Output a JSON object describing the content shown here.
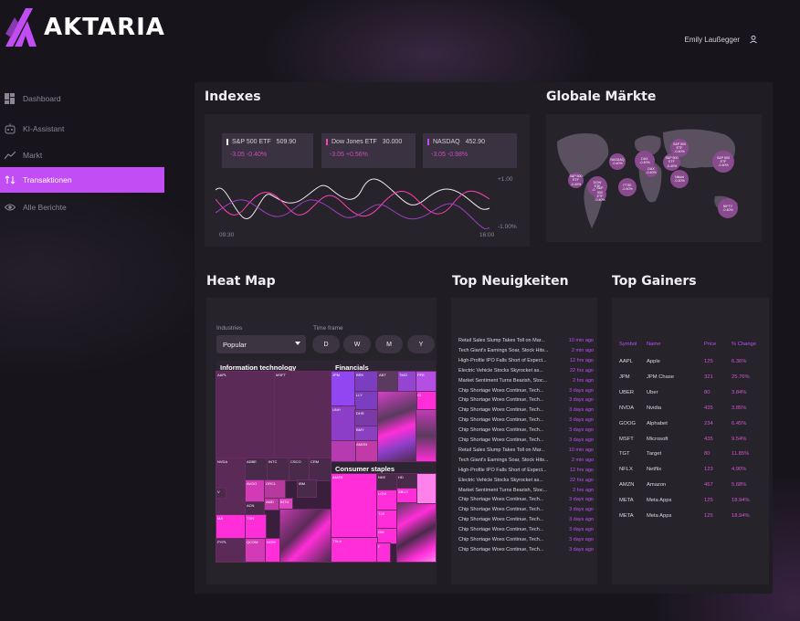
{
  "app": {
    "name": "AKTARIA"
  },
  "user": {
    "name": "Emily  Laußegger",
    "icon": "user-icon"
  },
  "sidebar": {
    "items": [
      {
        "label": "Dashboard",
        "icon": "dashboard-icon"
      },
      {
        "label": "KI-Assistant",
        "icon": "robot-icon"
      },
      {
        "label": "Markt",
        "icon": "trend-icon"
      },
      {
        "label": "Transaktionen",
        "icon": "transfer-icon",
        "active": true
      },
      {
        "label": "Alle Berichte",
        "icon": "eye-icon"
      }
    ]
  },
  "indexes": {
    "title": "Indexes",
    "cards": [
      {
        "name": "S&P 500 ETF",
        "value": "509.90",
        "change": "-3.05  -0.40%"
      },
      {
        "name": "Dow Jones ETF",
        "value": "30.000",
        "change": "-3.05  +0.56%"
      },
      {
        "name": "NASDAQ",
        "value": "452.90",
        "change": "-3.05  -0.98%"
      }
    ],
    "chart": {
      "x_start": "09:30",
      "x_end": "16:00",
      "y_top": "+1.00",
      "y_bottom": "-1.00%"
    }
  },
  "global_markets": {
    "title": "Globale Märkte",
    "bubbles": [
      {
        "label": "S&P 500\nETF\n-0.40%"
      },
      {
        "label": "DOW\nETF\n-0.40%"
      },
      {
        "label": "NASDAQ\n-0.40%"
      },
      {
        "label": "FTSE\n-0.40%"
      },
      {
        "label": "DAX\n-0.40%"
      },
      {
        "label": "S&P 500\nETF\n-0.40%"
      },
      {
        "label": "S&P 500\nETF\n-0.40%"
      },
      {
        "label": "Nikkei\n-0.40%"
      },
      {
        "label": "S&P 500\nETF\n-0.40%"
      },
      {
        "label": "NIFTY\n-0.40%"
      },
      {
        "label": "S&P 500\nETF\n-0.40%"
      },
      {
        "label": "DAX\n-0.40%"
      }
    ]
  },
  "heatmap": {
    "title": "Heat Map",
    "industries_label": "Industries",
    "industries_value": "Popular",
    "timeframe_label": "Time frame",
    "timeframes": [
      "D",
      "W",
      "M",
      "Y"
    ],
    "groups": [
      "Information technology",
      "Financials",
      "Consumer staples"
    ],
    "tickers_it": [
      "AAPL",
      "MSFT",
      "NVDA",
      "ADBE",
      "INTC",
      "CSCO",
      "CRM",
      "AVGO",
      "ORCL",
      "IBM",
      "ACN",
      "AMD",
      "INTU",
      "MA",
      "TXN",
      "PYPL",
      "QCOM",
      "NOW",
      "V"
    ],
    "tickers_fin": [
      "JPM",
      "BRK",
      "ABT",
      "TMO",
      "PFE",
      "LLY",
      "CI",
      "UNH",
      "DHR",
      "MRK",
      "BMY",
      "AMGN"
    ],
    "tickers_cs": [
      "AMZN",
      "NKE",
      "HD",
      "LOW",
      "SBUX",
      "TJX",
      "GM",
      "TSLA",
      "F"
    ]
  },
  "news": {
    "title": "Top Neuigkeiten",
    "items": [
      {
        "title": "Retail Sales Slump Takes Toll on Mar...",
        "age": "10 min ago"
      },
      {
        "title": "Tech Giant's Earnings Soar, Stock Hits...",
        "age": "2 min ago"
      },
      {
        "title": "High-Profile IPO Falls Short of Expect...",
        "age": "12 hrs ago"
      },
      {
        "title": "Electric Vehicle Stocks Skyrocket as...",
        "age": "22 hrs ago"
      },
      {
        "title": "Market Sentiment Turns Bearish, Stoc...",
        "age": "2 hrs ago"
      },
      {
        "title": "Chip Shortage Woes Continue, Tech...",
        "age": "3 days ago"
      },
      {
        "title": "Chip Shortage Woes Continue, Tech...",
        "age": "3 days ago"
      },
      {
        "title": "Chip Shortage Woes Continue, Tech...",
        "age": "3 days ago"
      },
      {
        "title": "Chip Shortage Woes Continue, Tech...",
        "age": "3 days ago"
      },
      {
        "title": "Chip Shortage Woes Continue, Tech...",
        "age": "3 days ago"
      },
      {
        "title": "Chip Shortage Woes Continue, Tech...",
        "age": "3 days ago"
      },
      {
        "title": "Retail Sales Slump Takes Toll on Mar...",
        "age": "10 min ago"
      },
      {
        "title": "Tech Giant's Earnings Soar, Stock Hits...",
        "age": "2 min ago"
      },
      {
        "title": "High-Profile IPO Falls Short of Expect...",
        "age": "12 hrs ago"
      },
      {
        "title": "Electric Vehicle Stocks Skyrocket as...",
        "age": "22 hrs ago"
      },
      {
        "title": "Market Sentiment Turns Bearish, Stoc...",
        "age": "2 hrs ago"
      },
      {
        "title": "Chip Shortage Woes Continue, Tech...",
        "age": "3 days ago"
      },
      {
        "title": "Chip Shortage Woes Continue, Tech...",
        "age": "3 days ago"
      },
      {
        "title": "Chip Shortage Woes Continue, Tech...",
        "age": "3 days ago"
      },
      {
        "title": "Chip Shortage Woes Continue, Tech...",
        "age": "3 days ago"
      },
      {
        "title": "Chip Shortage Woes Continue, Tech...",
        "age": "3 days ago"
      },
      {
        "title": "Chip Shortage Woes Continue, Tech...",
        "age": "3 days ago"
      }
    ]
  },
  "gainers": {
    "title": "Top Gainers",
    "columns": [
      "Symbol",
      "Name",
      "Price",
      "% Change"
    ],
    "rows": [
      [
        "AAPL",
        "Apple",
        "125",
        "6.36%"
      ],
      [
        "JPM",
        "JPM Chase",
        "321",
        "25.76%"
      ],
      [
        "UBER",
        "Uber",
        "80",
        "3.84%"
      ],
      [
        "NVDA",
        "Nvidia",
        "435",
        "3.85%"
      ],
      [
        "GOOG",
        "Alphabet",
        "234",
        "6.45%"
      ],
      [
        "MSFT",
        "Microsoft",
        "435",
        "9.54%"
      ],
      [
        "TGT",
        "Target",
        "80",
        "11.85%"
      ],
      [
        "NFLX",
        "Netflix",
        "123",
        "4.90%"
      ],
      [
        "AMZN",
        "Amazon",
        "467",
        "5.68%"
      ],
      [
        "META",
        "Meta Apps",
        "125",
        "18.94%"
      ],
      [
        "META",
        "Meta Apps",
        "125",
        "18.94%"
      ]
    ]
  },
  "colors": {
    "accent": "#c34df5",
    "pink": "#ff3fb3",
    "panel": "#1f1d23",
    "card": "#26232b"
  }
}
